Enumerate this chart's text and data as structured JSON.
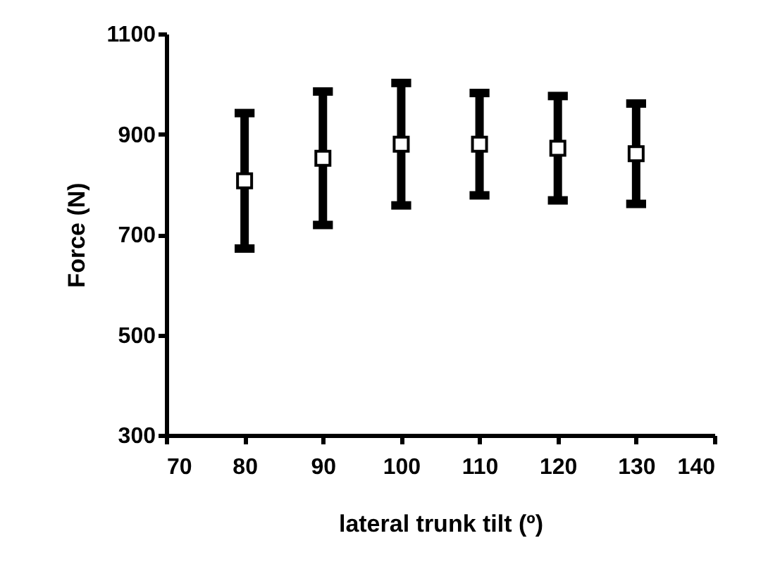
{
  "chart_data": {
    "type": "scatter",
    "xlabel": "lateral trunk tilt (º)",
    "ylabel": "Force (N)",
    "x": [
      80,
      90,
      100,
      110,
      120,
      130
    ],
    "values": [
      807,
      852,
      880,
      880,
      872,
      861
    ],
    "errors": [
      135,
      133,
      122,
      102,
      104,
      100
    ],
    "color": "#000000",
    "marker": "square",
    "xlim": [
      70,
      140
    ],
    "xticks": [
      70,
      80,
      90,
      100,
      110,
      120,
      130,
      140
    ],
    "ylim": [
      300,
      1100
    ],
    "yticks": [
      300,
      500,
      700,
      900,
      1100
    ],
    "grid": false
  }
}
